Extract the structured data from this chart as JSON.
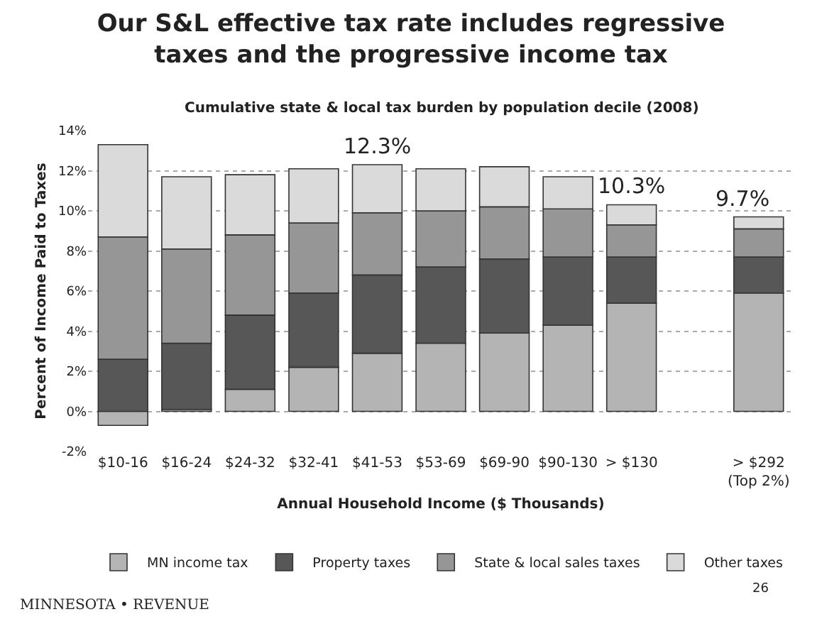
{
  "chart_data": {
    "type": "bar",
    "stacked": true,
    "title": "Our S&L effective tax rate includes regressive\ntaxes and the progressive income tax",
    "subtitle": "Cumulative state & local tax burden by population decile (2008)",
    "xlabel": "Annual Household Income ($ Thousands)",
    "ylabel": "Percent of Income Paid to Taxes",
    "categories": [
      "$10-16",
      "$16-24",
      "$24-32",
      "$32-41",
      "$41-53",
      "$53-69",
      "$69-90",
      "$90-130",
      "> $130",
      null,
      "> $292\n(Top 2%)"
    ],
    "series": [
      {
        "name": "MN income tax",
        "color": "#b4b4b4",
        "values": [
          -0.7,
          0.1,
          1.1,
          2.2,
          2.9,
          3.4,
          3.9,
          4.3,
          5.4,
          null,
          5.9
        ]
      },
      {
        "name": "Property taxes",
        "color": "#575757",
        "values": [
          2.6,
          3.3,
          3.7,
          3.7,
          3.9,
          3.8,
          3.7,
          3.4,
          2.3,
          null,
          1.8
        ]
      },
      {
        "name": "State & local sales taxes",
        "color": "#969696",
        "values": [
          6.1,
          4.7,
          4.0,
          3.5,
          3.1,
          2.8,
          2.6,
          2.4,
          1.6,
          null,
          1.4
        ]
      },
      {
        "name": "Other taxes",
        "color": "#dadada",
        "values": [
          4.6,
          3.6,
          3.0,
          2.7,
          2.4,
          2.1,
          2.0,
          1.6,
          1.0,
          null,
          0.6
        ]
      }
    ],
    "totals": [
      null,
      null,
      null,
      null,
      "12.3%",
      null,
      null,
      null,
      "10.3%",
      null,
      "9.7%"
    ],
    "ylim": [
      -2,
      14
    ],
    "yticks": [
      {
        "value": -2,
        "label": "-2%"
      },
      {
        "value": 0,
        "label": "0%"
      },
      {
        "value": 2,
        "label": "2%"
      },
      {
        "value": 4,
        "label": "4%"
      },
      {
        "value": 6,
        "label": "6%"
      },
      {
        "value": 8,
        "label": "8%"
      },
      {
        "value": 10,
        "label": "10%"
      },
      {
        "value": 12,
        "label": "12%"
      },
      {
        "value": 14,
        "label": "14%"
      }
    ],
    "grid": "y",
    "legend": "bottom",
    "annotations": [
      "26",
      "MINNESOTA • REVENUE"
    ]
  }
}
